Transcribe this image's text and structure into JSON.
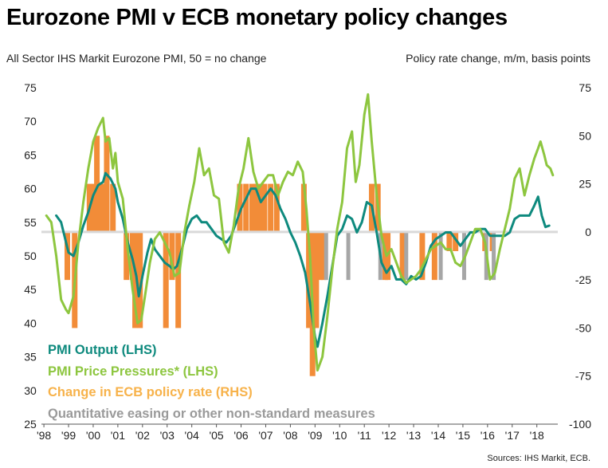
{
  "title": "Eurozone PMI v ECB monetary policy changes",
  "left_axis_title": "All Sector IHS Markit Eurozone PMI, 50 = no change",
  "right_axis_title": "Policy rate change, m/m, basis points",
  "source": "Sources: IHS Markit, ECB.",
  "legend": [
    {
      "label": "PMI  Output (LHS)",
      "color": "#0e8a7e"
    },
    {
      "label": "PMI Price Pressures* (LHS)",
      "color": "#8dc63f"
    },
    {
      "label": "Change in ECB policy rate (RHS)",
      "color": "#f7b24a"
    },
    {
      "label": "Quantitative easing or other non-standard measures",
      "color": "#9a9a9a"
    }
  ],
  "colors": {
    "output": "#0e8a7e",
    "price": "#8dc63f",
    "rate_bar": "#f28c38",
    "qe_bar": "#a6a6a6",
    "baseline": "#d9d9d9"
  },
  "chart_data": {
    "type": "line",
    "x_labels": [
      "'98",
      "'99",
      "'00",
      "'01",
      "'02",
      "'03",
      "'04",
      "'05",
      "'06",
      "'07",
      "'08",
      "'09",
      "'10",
      "'11",
      "'12",
      "'13",
      "'14",
      "'15",
      "'16",
      "'17",
      "'18"
    ],
    "y_left": {
      "min": 25,
      "max": 75,
      "ticks": [
        25,
        30,
        35,
        40,
        45,
        50,
        55,
        60,
        65,
        70,
        75
      ]
    },
    "y_right": {
      "min": -100,
      "max": 75,
      "ticks": [
        -100,
        -75,
        -50,
        -25,
        0,
        25,
        50,
        75
      ]
    },
    "series": [
      {
        "name": "PMI  Output (LHS)",
        "axis": "left",
        "points": [
          [
            1998.5,
            56
          ],
          [
            1998.7,
            55
          ],
          [
            1998.9,
            52
          ],
          [
            1999.0,
            50.5
          ],
          [
            1999.2,
            50
          ],
          [
            1999.4,
            52
          ],
          [
            1999.6,
            54.5
          ],
          [
            1999.8,
            56.5
          ],
          [
            2000.0,
            59
          ],
          [
            2000.2,
            60.5
          ],
          [
            2000.4,
            61
          ],
          [
            2000.5,
            62.3
          ],
          [
            2000.7,
            61.5
          ],
          [
            2000.9,
            60
          ],
          [
            2001.0,
            58
          ],
          [
            2001.2,
            55.5
          ],
          [
            2001.4,
            52
          ],
          [
            2001.6,
            49.5
          ],
          [
            2001.75,
            47
          ],
          [
            2001.85,
            44
          ],
          [
            2002.0,
            47
          ],
          [
            2002.2,
            50.5
          ],
          [
            2002.35,
            52.5
          ],
          [
            2002.5,
            51
          ],
          [
            2002.7,
            50
          ],
          [
            2002.9,
            49
          ],
          [
            2003.1,
            48.5
          ],
          [
            2003.25,
            48
          ],
          [
            2003.4,
            48.5
          ],
          [
            2003.6,
            51
          ],
          [
            2003.8,
            54
          ],
          [
            2004.0,
            55.5
          ],
          [
            2004.2,
            56
          ],
          [
            2004.4,
            55
          ],
          [
            2004.6,
            55
          ],
          [
            2004.8,
            54
          ],
          [
            2005.0,
            53
          ],
          [
            2005.2,
            52.5
          ],
          [
            2005.4,
            52
          ],
          [
            2005.6,
            53
          ],
          [
            2005.8,
            55
          ],
          [
            2006.0,
            57
          ],
          [
            2006.2,
            58.5
          ],
          [
            2006.4,
            60
          ],
          [
            2006.6,
            60
          ],
          [
            2006.8,
            58
          ],
          [
            2007.0,
            59
          ],
          [
            2007.2,
            60
          ],
          [
            2007.4,
            59
          ],
          [
            2007.6,
            57
          ],
          [
            2007.8,
            55.5
          ],
          [
            2008.0,
            53.5
          ],
          [
            2008.2,
            52
          ],
          [
            2008.4,
            50
          ],
          [
            2008.6,
            47.5
          ],
          [
            2008.8,
            43
          ],
          [
            2009.0,
            38
          ],
          [
            2009.1,
            36.5
          ],
          [
            2009.3,
            40
          ],
          [
            2009.5,
            44
          ],
          [
            2009.7,
            48.5
          ],
          [
            2009.9,
            53
          ],
          [
            2010.1,
            54
          ],
          [
            2010.3,
            56
          ],
          [
            2010.5,
            55.5
          ],
          [
            2010.7,
            53.5
          ],
          [
            2010.9,
            55
          ],
          [
            2011.1,
            58
          ],
          [
            2011.3,
            57.5
          ],
          [
            2011.5,
            53.5
          ],
          [
            2011.7,
            49
          ],
          [
            2011.9,
            47.5
          ],
          [
            2012.1,
            48.5
          ],
          [
            2012.3,
            46.5
          ],
          [
            2012.5,
            46.5
          ],
          [
            2012.7,
            45.8
          ],
          [
            2012.9,
            47
          ],
          [
            2013.1,
            46.5
          ],
          [
            2013.3,
            47
          ],
          [
            2013.5,
            49
          ],
          [
            2013.7,
            51.5
          ],
          [
            2013.9,
            52.5
          ],
          [
            2014.1,
            53
          ],
          [
            2014.3,
            53.5
          ],
          [
            2014.5,
            53.5
          ],
          [
            2014.7,
            52.5
          ],
          [
            2014.9,
            51.5
          ],
          [
            2015.1,
            52.5
          ],
          [
            2015.3,
            53.5
          ],
          [
            2015.5,
            53.5
          ],
          [
            2015.7,
            54
          ],
          [
            2015.9,
            54
          ],
          [
            2016.1,
            53
          ],
          [
            2016.3,
            53
          ],
          [
            2016.5,
            53
          ],
          [
            2016.7,
            53
          ],
          [
            2016.9,
            53.5
          ],
          [
            2017.1,
            55.5
          ],
          [
            2017.3,
            56
          ],
          [
            2017.5,
            56
          ],
          [
            2017.7,
            56
          ],
          [
            2017.9,
            57.5
          ],
          [
            2018.05,
            58.8
          ],
          [
            2018.2,
            56
          ],
          [
            2018.35,
            54.3
          ],
          [
            2018.5,
            54.5
          ]
        ]
      },
      {
        "name": "PMI Price Pressures* (LHS)",
        "axis": "left",
        "points": [
          [
            1998.1,
            56
          ],
          [
            1998.3,
            55
          ],
          [
            1998.5,
            50
          ],
          [
            1998.7,
            43.5
          ],
          [
            1998.9,
            42
          ],
          [
            1999.0,
            41.5
          ],
          [
            1999.2,
            44
          ],
          [
            1999.4,
            52
          ],
          [
            1999.6,
            58
          ],
          [
            1999.8,
            63
          ],
          [
            2000.0,
            67
          ],
          [
            2000.2,
            69
          ],
          [
            2000.4,
            70.5
          ],
          [
            2000.5,
            67
          ],
          [
            2000.65,
            67.5
          ],
          [
            2000.8,
            63
          ],
          [
            2000.9,
            65.3
          ],
          [
            2001.0,
            61
          ],
          [
            2001.2,
            58.5
          ],
          [
            2001.4,
            51
          ],
          [
            2001.6,
            45
          ],
          [
            2001.8,
            40
          ],
          [
            2001.95,
            40.5
          ],
          [
            2002.1,
            44
          ],
          [
            2002.3,
            49
          ],
          [
            2002.5,
            52.5
          ],
          [
            2002.7,
            53.5
          ],
          [
            2002.9,
            52
          ],
          [
            2003.1,
            50.5
          ],
          [
            2003.3,
            47
          ],
          [
            2003.5,
            47.5
          ],
          [
            2003.7,
            53.5
          ],
          [
            2003.9,
            57.5
          ],
          [
            2004.1,
            61
          ],
          [
            2004.3,
            66
          ],
          [
            2004.5,
            62
          ],
          [
            2004.7,
            63
          ],
          [
            2004.9,
            59
          ],
          [
            2005.1,
            58.5
          ],
          [
            2005.3,
            52
          ],
          [
            2005.5,
            50.5
          ],
          [
            2005.7,
            54.5
          ],
          [
            2005.9,
            60
          ],
          [
            2006.1,
            63
          ],
          [
            2006.3,
            67.5
          ],
          [
            2006.5,
            62.5
          ],
          [
            2006.7,
            60
          ],
          [
            2006.9,
            61
          ],
          [
            2007.1,
            62
          ],
          [
            2007.3,
            62
          ],
          [
            2007.5,
            59
          ],
          [
            2007.7,
            61
          ],
          [
            2007.9,
            62.5
          ],
          [
            2008.1,
            62
          ],
          [
            2008.3,
            64
          ],
          [
            2008.5,
            62.5
          ],
          [
            2008.65,
            57
          ],
          [
            2008.8,
            50
          ],
          [
            2008.95,
            39
          ],
          [
            2009.1,
            33
          ],
          [
            2009.3,
            35
          ],
          [
            2009.5,
            41
          ],
          [
            2009.7,
            48
          ],
          [
            2009.9,
            54
          ],
          [
            2010.1,
            58
          ],
          [
            2010.3,
            66
          ],
          [
            2010.5,
            68.5
          ],
          [
            2010.65,
            61
          ],
          [
            2010.8,
            63.5
          ],
          [
            2011.0,
            71
          ],
          [
            2011.15,
            74
          ],
          [
            2011.3,
            67
          ],
          [
            2011.5,
            59
          ],
          [
            2011.7,
            53
          ],
          [
            2011.9,
            50
          ],
          [
            2012.1,
            51
          ],
          [
            2012.3,
            49
          ],
          [
            2012.5,
            47
          ],
          [
            2012.7,
            46
          ],
          [
            2012.9,
            46.5
          ],
          [
            2013.1,
            47
          ],
          [
            2013.3,
            48
          ],
          [
            2013.5,
            49.5
          ],
          [
            2013.7,
            51
          ],
          [
            2013.9,
            51.5
          ],
          [
            2014.1,
            52
          ],
          [
            2014.3,
            51
          ],
          [
            2014.5,
            51
          ],
          [
            2014.7,
            49
          ],
          [
            2014.9,
            48.5
          ],
          [
            2015.1,
            50
          ],
          [
            2015.3,
            52
          ],
          [
            2015.5,
            54
          ],
          [
            2015.7,
            54
          ],
          [
            2015.9,
            52
          ],
          [
            2016.1,
            46.5
          ],
          [
            2016.3,
            47.5
          ],
          [
            2016.5,
            51
          ],
          [
            2016.7,
            54
          ],
          [
            2016.9,
            57
          ],
          [
            2017.1,
            61.5
          ],
          [
            2017.3,
            63
          ],
          [
            2017.5,
            59
          ],
          [
            2017.7,
            62
          ],
          [
            2017.9,
            64.5
          ],
          [
            2018.05,
            66
          ],
          [
            2018.15,
            67
          ],
          [
            2018.3,
            65
          ],
          [
            2018.4,
            63.5
          ],
          [
            2018.55,
            63
          ],
          [
            2018.65,
            62
          ]
        ]
      }
    ],
    "policy_rate_bars": [
      {
        "x": 1998.95,
        "v": -25
      },
      {
        "x": 1999.25,
        "v": -50
      },
      {
        "x": 1999.85,
        "v": 25
      },
      {
        "x": 2000.05,
        "v": 25
      },
      {
        "x": 2000.15,
        "v": 50
      },
      {
        "x": 2000.25,
        "v": 25
      },
      {
        "x": 2000.45,
        "v": 25
      },
      {
        "x": 2000.55,
        "v": 50
      },
      {
        "x": 2000.8,
        "v": 25
      },
      {
        "x": 2001.35,
        "v": -25
      },
      {
        "x": 2001.6,
        "v": -25
      },
      {
        "x": 2001.7,
        "v": -50
      },
      {
        "x": 2001.9,
        "v": -50
      },
      {
        "x": 2002.95,
        "v": -50
      },
      {
        "x": 2003.2,
        "v": -25
      },
      {
        "x": 2003.45,
        "v": -50
      },
      {
        "x": 2005.95,
        "v": 25
      },
      {
        "x": 2006.2,
        "v": 25
      },
      {
        "x": 2006.45,
        "v": 25
      },
      {
        "x": 2006.6,
        "v": 25
      },
      {
        "x": 2006.8,
        "v": 25
      },
      {
        "x": 2006.95,
        "v": 25
      },
      {
        "x": 2007.2,
        "v": 25
      },
      {
        "x": 2007.45,
        "v": 25
      },
      {
        "x": 2008.55,
        "v": 25
      },
      {
        "x": 2008.75,
        "v": -50
      },
      {
        "x": 2008.9,
        "v": -75
      },
      {
        "x": 2009.05,
        "v": -50
      },
      {
        "x": 2009.2,
        "v": -25
      },
      {
        "x": 2009.35,
        "v": -25
      },
      {
        "x": 2011.3,
        "v": 25
      },
      {
        "x": 2011.55,
        "v": 25
      },
      {
        "x": 2011.85,
        "v": -25
      },
      {
        "x": 2011.95,
        "v": -25
      },
      {
        "x": 2012.55,
        "v": -25
      },
      {
        "x": 2013.35,
        "v": -25
      },
      {
        "x": 2013.85,
        "v": -25
      },
      {
        "x": 2014.45,
        "v": -10
      },
      {
        "x": 2014.7,
        "v": -10
      },
      {
        "x": 2015.9,
        "v": -10
      },
      {
        "x": 2016.2,
        "v": -10
      }
    ],
    "qe_bars": [
      {
        "x": 2009.45,
        "v": -25
      },
      {
        "x": 2010.35,
        "v": -25
      },
      {
        "x": 2011.65,
        "v": -25
      },
      {
        "x": 2012.7,
        "v": -25
      },
      {
        "x": 2014.1,
        "v": -25
      },
      {
        "x": 2015.05,
        "v": -25
      },
      {
        "x": 2015.95,
        "v": -25
      },
      {
        "x": 2016.25,
        "v": -25
      }
    ]
  }
}
